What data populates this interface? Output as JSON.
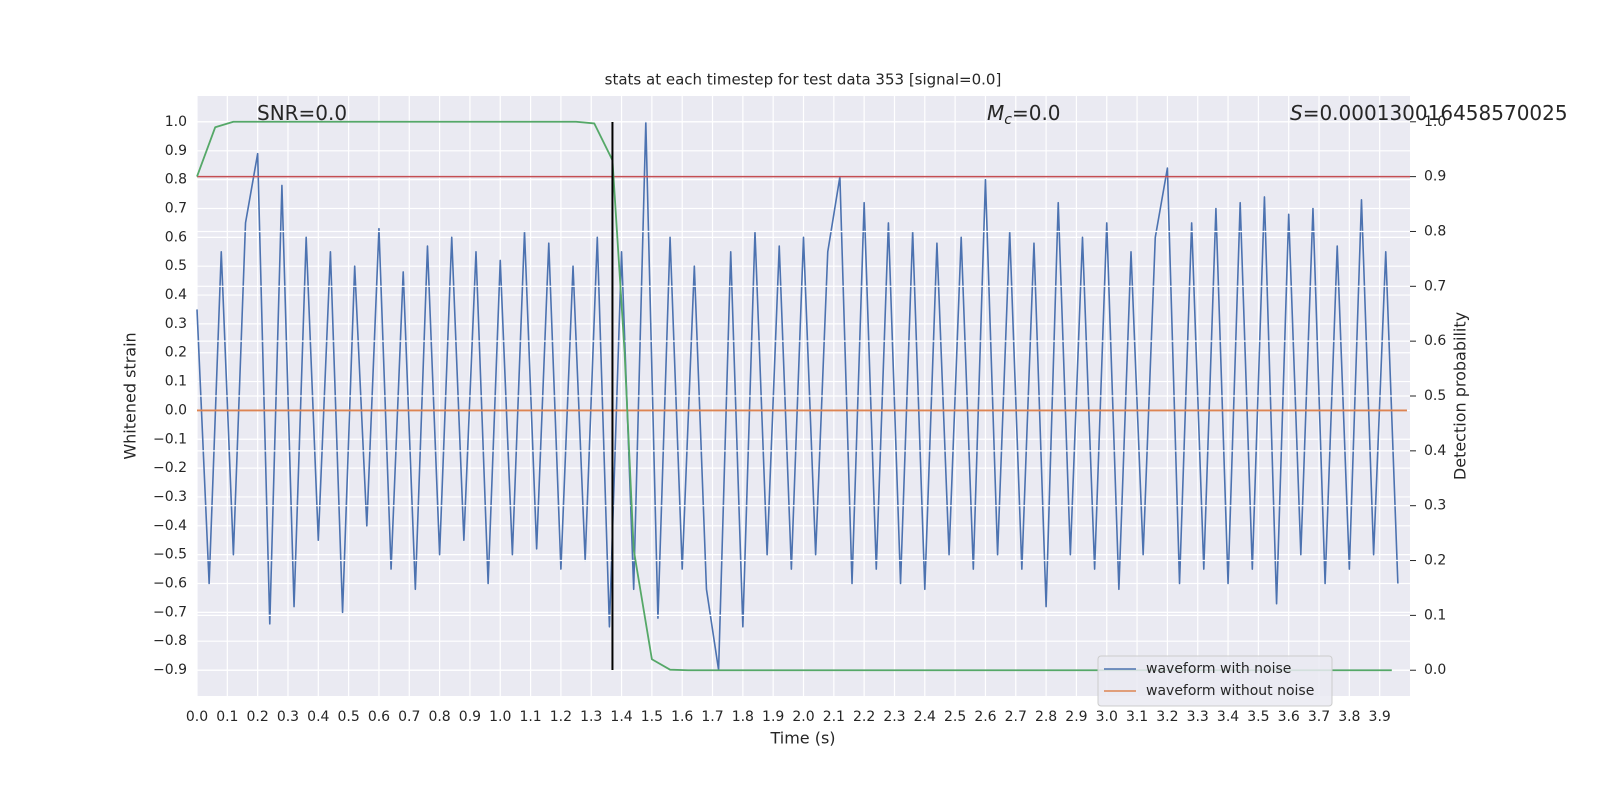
{
  "chart_data": {
    "type": "line",
    "title": "stats at each timestep for test data 353 [signal=0.0]",
    "x_label": "Time (s)",
    "y_label": "Whitened strain",
    "y2_label": "Detection probability",
    "background": "#eaeaf2",
    "grid": true,
    "legend": "lower right",
    "xlim": [
      0.0,
      4.0
    ],
    "ylim": [
      -0.99,
      1.09
    ],
    "y2lim": [
      -0.047,
      1.047
    ],
    "xticks": [
      {
        "value": 0.0,
        "label": "0.0"
      },
      {
        "value": 0.1,
        "label": "0.1"
      },
      {
        "value": 0.2,
        "label": "0.2"
      },
      {
        "value": 0.3,
        "label": "0.3"
      },
      {
        "value": 0.4,
        "label": "0.4"
      },
      {
        "value": 0.5,
        "label": "0.5"
      },
      {
        "value": 0.6,
        "label": "0.6"
      },
      {
        "value": 0.7,
        "label": "0.7"
      },
      {
        "value": 0.8,
        "label": "0.8"
      },
      {
        "value": 0.9,
        "label": "0.9"
      },
      {
        "value": 1.0,
        "label": "1.0"
      },
      {
        "value": 1.1,
        "label": "1.1"
      },
      {
        "value": 1.2,
        "label": "1.2"
      },
      {
        "value": 1.3,
        "label": "1.3"
      },
      {
        "value": 1.4,
        "label": "1.4"
      },
      {
        "value": 1.5,
        "label": "1.5"
      },
      {
        "value": 1.6,
        "label": "1.6"
      },
      {
        "value": 1.7,
        "label": "1.7"
      },
      {
        "value": 1.8,
        "label": "1.8"
      },
      {
        "value": 1.9,
        "label": "1.9"
      },
      {
        "value": 2.0,
        "label": "2.0"
      },
      {
        "value": 2.1,
        "label": "2.1"
      },
      {
        "value": 2.2,
        "label": "2.2"
      },
      {
        "value": 2.3,
        "label": "2.3"
      },
      {
        "value": 2.4,
        "label": "2.4"
      },
      {
        "value": 2.5,
        "label": "2.5"
      },
      {
        "value": 2.6,
        "label": "2.6"
      },
      {
        "value": 2.7,
        "label": "2.7"
      },
      {
        "value": 2.8,
        "label": "2.8"
      },
      {
        "value": 2.9,
        "label": "2.9"
      },
      {
        "value": 3.0,
        "label": "3.0"
      },
      {
        "value": 3.1,
        "label": "3.1"
      },
      {
        "value": 3.2,
        "label": "3.2"
      },
      {
        "value": 3.3,
        "label": "3.3"
      },
      {
        "value": 3.4,
        "label": "3.4"
      },
      {
        "value": 3.5,
        "label": "3.5"
      },
      {
        "value": 3.6,
        "label": "3.6"
      },
      {
        "value": 3.7,
        "label": "3.7"
      },
      {
        "value": 3.8,
        "label": "3.8"
      },
      {
        "value": 3.9,
        "label": "3.9"
      }
    ],
    "yticks": [
      {
        "value": 1.0,
        "label": "1.0"
      },
      {
        "value": 0.9,
        "label": "0.9"
      },
      {
        "value": 0.8,
        "label": "0.8"
      },
      {
        "value": 0.7,
        "label": "0.7"
      },
      {
        "value": 0.6,
        "label": "0.6"
      },
      {
        "value": 0.5,
        "label": "0.5"
      },
      {
        "value": 0.4,
        "label": "0.4"
      },
      {
        "value": 0.3,
        "label": "0.3"
      },
      {
        "value": 0.2,
        "label": "0.2"
      },
      {
        "value": 0.1,
        "label": "0.1"
      },
      {
        "value": 0.0,
        "label": "0.0"
      },
      {
        "value": -0.1,
        "label": "−0.1"
      },
      {
        "value": -0.2,
        "label": "−0.2"
      },
      {
        "value": -0.3,
        "label": "−0.3"
      },
      {
        "value": -0.4,
        "label": "−0.4"
      },
      {
        "value": -0.5,
        "label": "−0.5"
      },
      {
        "value": -0.6,
        "label": "−0.6"
      },
      {
        "value": -0.7,
        "label": "−0.7"
      },
      {
        "value": -0.8,
        "label": "−0.8"
      },
      {
        "value": -0.9,
        "label": "−0.9"
      }
    ],
    "y2ticks": [
      {
        "value": 0.0,
        "label": "0.0"
      },
      {
        "value": 0.1,
        "label": "0.1"
      },
      {
        "value": 0.2,
        "label": "0.2"
      },
      {
        "value": 0.3,
        "label": "0.3"
      },
      {
        "value": 0.4,
        "label": "0.4"
      },
      {
        "value": 0.5,
        "label": "0.5"
      },
      {
        "value": 0.6,
        "label": "0.6"
      },
      {
        "value": 0.7,
        "label": "0.7"
      },
      {
        "value": 0.8,
        "label": "0.8"
      },
      {
        "value": 0.9,
        "label": "0.9"
      },
      {
        "value": 1.0,
        "label": "1.0"
      }
    ],
    "series": [
      {
        "name": "waveform with noise",
        "color": "#4c72b0",
        "x": [
          0.0,
          0.04,
          0.08,
          0.12,
          0.16,
          0.2,
          0.24,
          0.28,
          0.32,
          0.36,
          0.4,
          0.44,
          0.48,
          0.52,
          0.56,
          0.6,
          0.64,
          0.68,
          0.72,
          0.76,
          0.8,
          0.84,
          0.88,
          0.92,
          0.96,
          1.0,
          1.04,
          1.08,
          1.12,
          1.16,
          1.2,
          1.24,
          1.28,
          1.32,
          1.36,
          1.4,
          1.44,
          1.48,
          1.52,
          1.56,
          1.6,
          1.64,
          1.68,
          1.72,
          1.76,
          1.8,
          1.84,
          1.88,
          1.92,
          1.96,
          2.0,
          2.04,
          2.08,
          2.12,
          2.16,
          2.2,
          2.24,
          2.28,
          2.32,
          2.36,
          2.4,
          2.44,
          2.48,
          2.52,
          2.56,
          2.6,
          2.64,
          2.68,
          2.72,
          2.76,
          2.8,
          2.84,
          2.88,
          2.92,
          2.96,
          3.0,
          3.04,
          3.08,
          3.12,
          3.16,
          3.2,
          3.24,
          3.28,
          3.32,
          3.36,
          3.4,
          3.44,
          3.48,
          3.52,
          3.56,
          3.6,
          3.64,
          3.68,
          3.72,
          3.76,
          3.8,
          3.84,
          3.88,
          3.92,
          3.96
        ],
        "values": [
          0.35,
          -0.6,
          0.55,
          -0.5,
          0.65,
          0.89,
          -0.74,
          0.78,
          -0.68,
          0.6,
          -0.45,
          0.55,
          -0.7,
          0.5,
          -0.4,
          0.63,
          -0.55,
          0.48,
          -0.62,
          0.57,
          -0.5,
          0.6,
          -0.45,
          0.55,
          -0.6,
          0.52,
          -0.5,
          0.62,
          -0.48,
          0.58,
          -0.55,
          0.5,
          -0.52,
          0.6,
          -0.75,
          0.55,
          -0.62,
          1.0,
          -0.72,
          0.6,
          -0.55,
          0.5,
          -0.62,
          -0.9,
          0.55,
          -0.75,
          0.62,
          -0.5,
          0.57,
          -0.55,
          0.6,
          -0.5,
          0.55,
          0.81,
          -0.6,
          0.72,
          -0.55,
          0.65,
          -0.6,
          0.62,
          -0.62,
          0.58,
          -0.5,
          0.6,
          -0.55,
          0.8,
          -0.5,
          0.62,
          -0.55,
          0.58,
          -0.68,
          0.72,
          -0.5,
          0.6,
          -0.55,
          0.65,
          -0.62,
          0.55,
          -0.5,
          0.6,
          0.84,
          -0.6,
          0.65,
          -0.55,
          0.7,
          -0.6,
          0.72,
          -0.55,
          0.74,
          -0.67,
          0.68,
          -0.5,
          0.7,
          -0.6,
          0.57,
          -0.55,
          0.73,
          -0.5,
          0.55,
          -0.6
        ]
      },
      {
        "name": "waveform without noise",
        "color": "#dd8452",
        "x": [
          0.0,
          3.99
        ],
        "values": [
          0.0,
          0.0
        ]
      }
    ],
    "probability": {
      "color": "#55a868",
      "axis": "y2",
      "x": [
        0.0,
        0.06,
        0.12,
        1.25,
        1.31,
        1.37,
        1.41,
        1.44,
        1.5,
        1.56,
        1.62,
        3.94
      ],
      "values": [
        0.9,
        0.99,
        1.0,
        1.0,
        0.997,
        0.93,
        0.58,
        0.22,
        0.02,
        0.001,
        0.0,
        0.0
      ]
    },
    "threshold": {
      "value": 0.9,
      "color": "#c44e52",
      "axis": "y2"
    },
    "vline": {
      "x": 1.37,
      "ymin": -0.9,
      "ymax": 1.0,
      "color": "#000000"
    },
    "annotations": [
      {
        "text": "SNR=0.0"
      },
      {
        "symbol": "M",
        "subscript": "c",
        "text": "=0.0"
      },
      {
        "symbol": "S",
        "text": "=0.000130016458570025"
      }
    ]
  }
}
